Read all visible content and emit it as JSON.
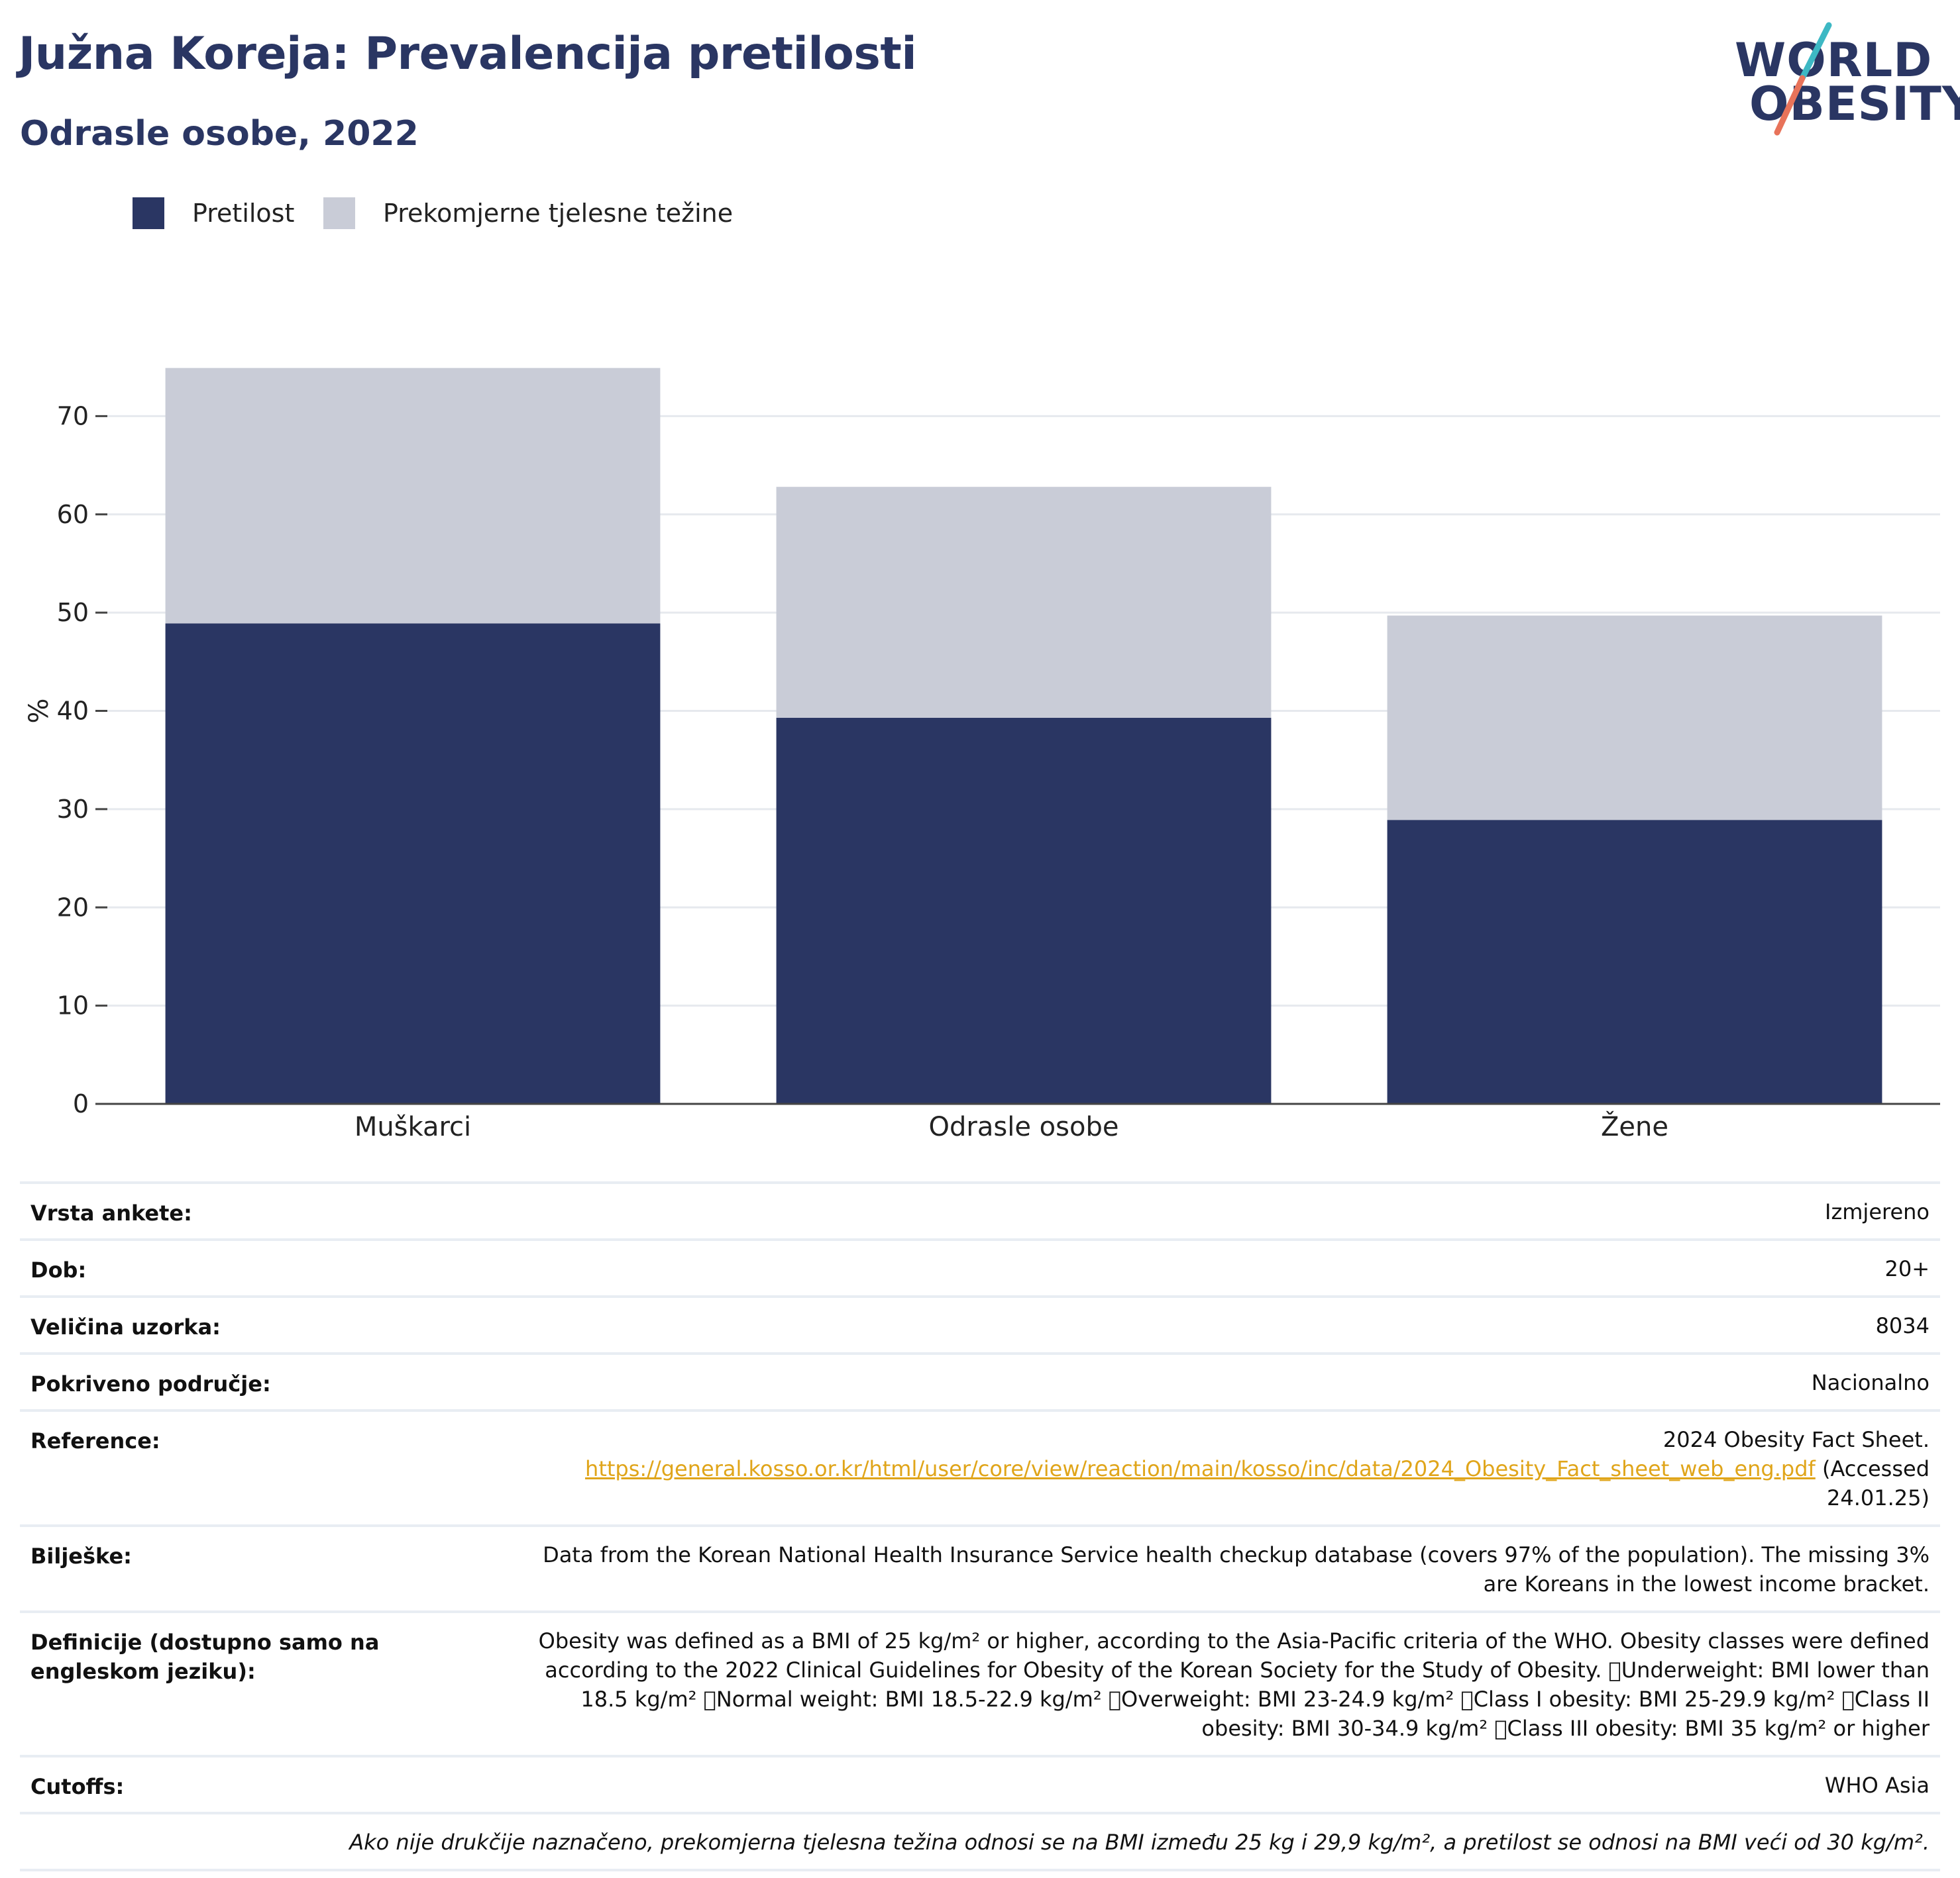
{
  "header": {
    "title": "Južna Koreja: Prevalencija pretilosti",
    "subtitle": "Odrasle osobe, 2022",
    "logo_line1": "WORLD",
    "logo_line2": "OBESITY"
  },
  "colors": {
    "obesity": "#2a3663",
    "overweight": "#c9ccd7",
    "title": "#2a3663",
    "link": "#e0a51a",
    "logo_teal": "#3db8c4",
    "logo_coral": "#e8735a"
  },
  "legend": [
    {
      "label": "Pretilost",
      "color": "#2a3663"
    },
    {
      "label": "Prekomjerne tjelesne težine",
      "color": "#c9ccd7"
    }
  ],
  "chart_data": {
    "type": "bar",
    "stacked": true,
    "categories": [
      "Muškarci",
      "Odrasle osobe",
      "Žene"
    ],
    "series": [
      {
        "name": "Pretilost",
        "values": [
          48.9,
          39.3,
          28.9
        ]
      },
      {
        "name": "Prekomjerne tjelesne težine",
        "values": [
          26.0,
          23.5,
          20.8
        ]
      }
    ],
    "ylabel": "%",
    "ylim": [
      0,
      80
    ],
    "yticks": [
      0,
      10,
      20,
      30,
      40,
      50,
      60,
      70
    ],
    "grid": true,
    "legend_position": "top-left"
  },
  "table": [
    {
      "label": "Vrsta ankete:",
      "value": "Izmjereno"
    },
    {
      "label": "Dob:",
      "value": "20+"
    },
    {
      "label": "Veličina uzorka:",
      "value": "8034"
    },
    {
      "label": "Pokriveno područje:",
      "value": "Nacionalno"
    },
    {
      "label": "Reference:",
      "value_prefix": "2024 Obesity Fact Sheet.",
      "link": "https://general.kosso.or.kr/html/user/core/view/reaction/main/kosso/inc/data/2024_Obesity_Fact_sheet_web_eng.pdf",
      "value_suffix": "(Accessed 24.01.25)"
    },
    {
      "label": "Bilješke:",
      "value": "Data from the Korean National Health Insurance Service health checkup database (covers 97% of the population). The missing 3% are Koreans in the lowest income bracket."
    },
    {
      "label": "Definicije (dostupno samo na engleskom jeziku):",
      "value": "Obesity was defined as a BMI of 25 kg/m² or higher, according to the Asia-Pacific criteria of the WHO. Obesity classes were defined according to the 2022 Clinical Guidelines for Obesity of the Korean Society for the Study of Obesity. \u0000Underweight: BMI lower than 18.5 kg/m² \u0000Normal weight: BMI 18.5-22.9 kg/m² \u0000Overweight: BMI 23-24.9 kg/m² \u0000Class I obesity: BMI 25-29.9 kg/m² \u0000Class II obesity: BMI 30-34.9 kg/m² \u0000Class III obesity: BMI 35 kg/m² or higher"
    },
    {
      "label": "Cutoffs:",
      "value": "WHO Asia"
    }
  ],
  "footnote": "Ako nije drukčije naznačeno, prekomjerna tjelesna težina odnosi se na BMI između 25 kg i 29,9 kg/m², a pretilost se odnosi na BMI veći od 30 kg/m²."
}
